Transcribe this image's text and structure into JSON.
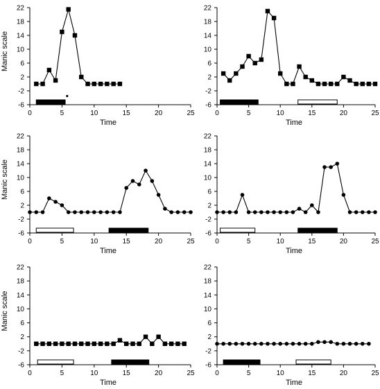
{
  "figure": {
    "colors": {
      "line": "#000000",
      "marker": "#000000",
      "bar_filled": "#000000",
      "bar_empty": "#ffffff"
    }
  },
  "chart_data": [
    {
      "type": "line",
      "marker": "square",
      "xlabel": "Time",
      "ylabel": "Manic scale",
      "xlim": [
        0,
        25
      ],
      "ylim": [
        -6,
        22
      ],
      "xticks": [
        "0",
        "5",
        "10",
        "15",
        "20",
        "25"
      ],
      "yticks": [
        "-6",
        "-2",
        "2",
        "6",
        "10",
        "14",
        "18",
        "22"
      ],
      "series": [
        {
          "x": [
            1,
            2,
            3,
            4,
            5,
            6,
            7,
            8,
            9,
            10,
            11,
            12,
            13,
            14
          ],
          "y": [
            0,
            0,
            4,
            1,
            15,
            21.5,
            14,
            2,
            0,
            0,
            0,
            0,
            0,
            0
          ]
        }
      ],
      "extra_points": [
        {
          "x": 5.8,
          "y": -3.5
        }
      ],
      "treatment_bars": [
        {
          "start": 1,
          "end": 5.5,
          "filled": true
        }
      ]
    },
    {
      "type": "line",
      "marker": "square",
      "xlabel": "Time",
      "ylabel": "",
      "xlim": [
        0,
        25
      ],
      "ylim": [
        -6,
        22
      ],
      "xticks": [
        "0",
        "5",
        "10",
        "15",
        "20",
        "25"
      ],
      "yticks": [
        "-6",
        "-2",
        "2",
        "6",
        "10",
        "14",
        "18",
        "22"
      ],
      "series": [
        {
          "x": [
            1,
            2,
            3,
            4,
            5,
            6,
            7,
            8,
            9,
            10,
            11,
            12,
            13,
            14,
            15,
            16,
            17,
            18,
            19,
            20,
            21,
            22,
            23,
            24,
            25
          ],
          "y": [
            3,
            1,
            3,
            5,
            8,
            6,
            7,
            21,
            19,
            3,
            0,
            0,
            5,
            2,
            1,
            0,
            0,
            0,
            0,
            2,
            1,
            0,
            0,
            0,
            0
          ]
        }
      ],
      "treatment_bars": [
        {
          "start": 0.5,
          "end": 6.5,
          "filled": true
        },
        {
          "start": 12.8,
          "end": 19,
          "filled": false
        }
      ]
    },
    {
      "type": "line",
      "marker": "circle",
      "xlabel": "Time",
      "ylabel": "Manic scale",
      "xlim": [
        0,
        25
      ],
      "ylim": [
        -6,
        22
      ],
      "xticks": [
        "0",
        "5",
        "10",
        "15",
        "20",
        "25"
      ],
      "yticks": [
        "-6",
        "-2",
        "2",
        "6",
        "10",
        "14",
        "18",
        "22"
      ],
      "series": [
        {
          "x": [
            0,
            1,
            2,
            3,
            4,
            5,
            6,
            7,
            8,
            9,
            10,
            11,
            12,
            13,
            14,
            15,
            16,
            17,
            18,
            19,
            20,
            21,
            22,
            23,
            24,
            25
          ],
          "y": [
            0,
            0,
            0,
            4,
            3,
            2,
            0,
            0,
            0,
            0,
            0,
            0,
            0,
            0,
            0,
            7,
            9,
            8,
            12,
            9,
            5,
            1,
            0,
            0,
            0,
            0
          ]
        }
      ],
      "treatment_bars": [
        {
          "start": 1,
          "end": 6.8,
          "filled": false
        },
        {
          "start": 12.3,
          "end": 18.4,
          "filled": true
        }
      ]
    },
    {
      "type": "line",
      "marker": "circle",
      "xlabel": "Time",
      "ylabel": "",
      "xlim": [
        0,
        25
      ],
      "ylim": [
        -6,
        22
      ],
      "xticks": [
        "0",
        "5",
        "10",
        "15",
        "20",
        "25"
      ],
      "yticks": [
        "-6",
        "-2",
        "2",
        "6",
        "10",
        "14",
        "18",
        "22"
      ],
      "series": [
        {
          "x": [
            0,
            1,
            2,
            3,
            4,
            5,
            6,
            7,
            8,
            9,
            10,
            11,
            12,
            13,
            14,
            15,
            16,
            17,
            18,
            19,
            20,
            21,
            22,
            23,
            24,
            25
          ],
          "y": [
            0,
            0,
            0,
            0,
            5,
            0,
            0,
            0,
            0,
            0,
            0,
            0,
            0,
            1,
            0,
            2,
            0,
            13,
            13,
            14,
            5,
            0,
            0,
            0,
            0,
            0
          ]
        }
      ],
      "treatment_bars": [
        {
          "start": 0.5,
          "end": 6,
          "filled": false
        },
        {
          "start": 12.8,
          "end": 19,
          "filled": true
        }
      ]
    },
    {
      "type": "line",
      "marker": "square",
      "xlabel": "Time",
      "ylabel": "Manic scale",
      "xlim": [
        0,
        25
      ],
      "ylim": [
        -6,
        22
      ],
      "xticks": [
        "0",
        "5",
        "10",
        "15",
        "20",
        "25"
      ],
      "yticks": [
        "-6",
        "-2",
        "2",
        "6",
        "10",
        "14",
        "18",
        "22"
      ],
      "series": [
        {
          "x": [
            1,
            2,
            3,
            4,
            5,
            6,
            7,
            8,
            9,
            10,
            11,
            12,
            13,
            14,
            15,
            16,
            17,
            18,
            19,
            20,
            21,
            22,
            23,
            24
          ],
          "y": [
            0,
            0,
            0,
            0,
            0,
            0,
            0,
            0,
            0,
            0,
            0,
            0,
            0,
            1,
            0,
            0,
            0,
            2,
            0,
            2,
            0,
            0,
            0,
            0
          ]
        }
      ],
      "treatment_bars": [
        {
          "start": 1.2,
          "end": 6.8,
          "filled": false
        },
        {
          "start": 12.7,
          "end": 18.5,
          "filled": true
        }
      ]
    },
    {
      "type": "line",
      "marker": "circle",
      "xlabel": "Time",
      "ylabel": "",
      "xlim": [
        0,
        25
      ],
      "ylim": [
        -6,
        22
      ],
      "xticks": [
        "0",
        "5",
        "10",
        "15",
        "20",
        "25"
      ],
      "yticks": [
        "-6",
        "-2",
        "2",
        "6",
        "10",
        "14",
        "18",
        "22"
      ],
      "series": [
        {
          "x": [
            0,
            1,
            2,
            3,
            4,
            5,
            6,
            7,
            8,
            9,
            10,
            11,
            12,
            13,
            14,
            15,
            16,
            17,
            18,
            19,
            20,
            21,
            22,
            23,
            24
          ],
          "y": [
            0,
            0,
            0,
            0,
            0,
            0,
            0,
            0,
            0,
            0,
            0,
            0,
            0,
            0,
            0,
            0,
            0.5,
            0.5,
            0.5,
            0,
            0,
            0,
            0,
            0,
            0
          ]
        }
      ],
      "treatment_bars": [
        {
          "start": 1,
          "end": 6.8,
          "filled": true
        },
        {
          "start": 12.5,
          "end": 18,
          "filled": false
        }
      ]
    }
  ]
}
